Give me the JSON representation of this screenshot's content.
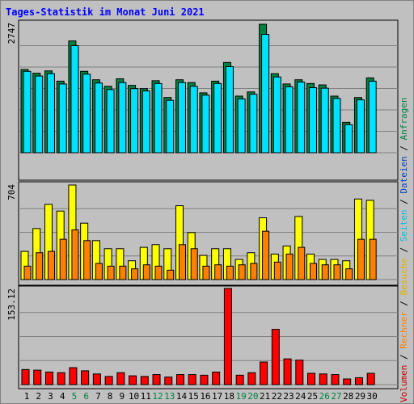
{
  "title": "Tages-Statistik im Monat Juni 2021",
  "legend": [
    {
      "label": "Volumen",
      "color": "#cc0000"
    },
    {
      "label": " / ",
      "color": "#000000"
    },
    {
      "label": "Rechner",
      "color": "#ff8000"
    },
    {
      "label": " / ",
      "color": "#000000"
    },
    {
      "label": "Besuche",
      "color": "#e0b000"
    },
    {
      "label": " / ",
      "color": "#000000"
    },
    {
      "label": "Seiten",
      "color": "#00c0e0"
    },
    {
      "label": " / ",
      "color": "#000000"
    },
    {
      "label": "Dateien",
      "color": "#0040c0"
    },
    {
      "label": " / ",
      "color": "#000000"
    },
    {
      "label": "Anfragen",
      "color": "#008040"
    }
  ],
  "colors": {
    "frame_bg": "#c0c0c0",
    "panel_bg": "#c0c0c0",
    "grid": "#808080",
    "weekend_label": "#008040",
    "weekday_label": "#000000",
    "anfragen": "#008040",
    "dateien": "#00e0ff",
    "seiten": "#00c0e0",
    "besuche": "#ffff00",
    "rechner": "#ff8000",
    "volumen": "#ff0000"
  },
  "chart_data": [
    {
      "type": "bar",
      "name": "Anfragen / Dateien",
      "x": [
        1,
        2,
        3,
        4,
        5,
        6,
        7,
        8,
        9,
        10,
        11,
        12,
        13,
        14,
        15,
        16,
        17,
        18,
        19,
        20,
        21,
        22,
        23,
        24,
        25,
        26,
        27,
        28,
        29,
        30
      ],
      "x_labels": [
        "1",
        "2",
        "3",
        "4",
        "5",
        "6",
        "7",
        "8",
        "9",
        "10",
        "11",
        "12",
        "13",
        "14",
        "15",
        "16",
        "17",
        "18",
        "19",
        "20",
        "21",
        "22",
        "23",
        "24",
        "25",
        "26",
        "27",
        "28",
        "29",
        "30"
      ],
      "x_weekend": [
        5,
        6,
        12,
        13,
        19,
        20,
        26,
        27
      ],
      "ymax_label": "2747",
      "ylim": [
        0,
        2747
      ],
      "series": [
        {
          "key": "anfragen",
          "values": [
            1780,
            1700,
            1750,
            1530,
            2390,
            1740,
            1560,
            1420,
            1580,
            1440,
            1370,
            1540,
            1180,
            1560,
            1500,
            1280,
            1530,
            1930,
            1210,
            1300,
            2747,
            1690,
            1470,
            1560,
            1480,
            1450,
            1210,
            650,
            1180,
            1600
          ]
        },
        {
          "key": "dateien",
          "values": [
            1740,
            1640,
            1690,
            1470,
            2290,
            1680,
            1490,
            1350,
            1500,
            1370,
            1320,
            1480,
            1120,
            1500,
            1420,
            1230,
            1480,
            1840,
            1150,
            1250,
            2530,
            1620,
            1410,
            1510,
            1390,
            1380,
            1160,
            600,
            1130,
            1530
          ]
        }
      ]
    },
    {
      "type": "bar",
      "name": "Seiten / Besuche / Rechner",
      "ymax_label": "704",
      "ylim": [
        0,
        704
      ],
      "series": [
        {
          "key": "besuche",
          "values": [
            210,
            380,
            560,
            510,
            704,
            420,
            290,
            230,
            230,
            140,
            240,
            260,
            230,
            550,
            350,
            180,
            230,
            230,
            150,
            200,
            460,
            190,
            250,
            470,
            190,
            150,
            150,
            140,
            600,
            590
          ]
        },
        {
          "key": "rechner",
          "values": [
            100,
            200,
            210,
            300,
            370,
            290,
            120,
            100,
            100,
            80,
            110,
            100,
            70,
            260,
            230,
            100,
            110,
            100,
            110,
            120,
            360,
            130,
            190,
            240,
            120,
            110,
            110,
            80,
            300,
            300
          ]
        }
      ]
    },
    {
      "type": "bar",
      "name": "Volumen",
      "ymax_label": "153.12",
      "ylim": [
        0,
        153.12
      ],
      "series": [
        {
          "key": "volumen",
          "values": [
            24,
            23,
            20,
            19,
            27,
            22,
            17,
            13,
            19,
            14,
            13,
            16,
            12,
            16,
            16,
            15,
            20,
            153.12,
            15,
            19,
            36,
            88,
            41,
            39,
            18,
            17,
            16,
            9,
            11,
            18
          ]
        }
      ]
    }
  ]
}
